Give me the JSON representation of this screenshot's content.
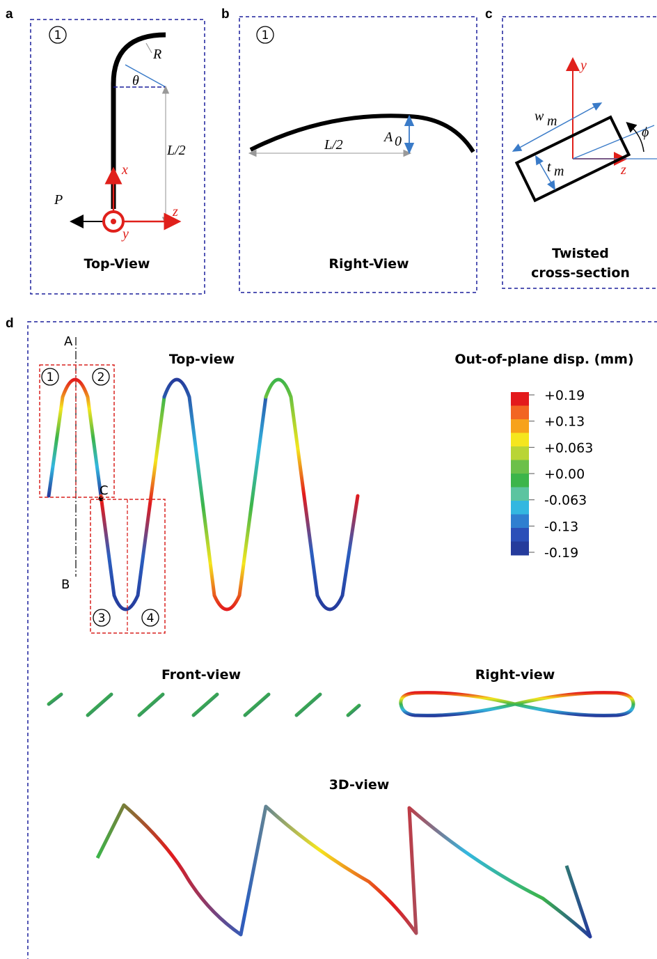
{
  "panel_labels": {
    "a": "a",
    "b": "b",
    "c": "c",
    "d": "d"
  },
  "panel_a": {
    "marker": "1",
    "R": "R",
    "theta": "θ",
    "L_half": "L/2",
    "x": "x",
    "y": "y",
    "z": "z",
    "P": "P",
    "caption": "Top-View"
  },
  "panel_b": {
    "marker": "1",
    "A": "A",
    "A_sub": "0",
    "L_half": "L/2",
    "caption": "Right-View"
  },
  "panel_c": {
    "y": "y",
    "z": "z",
    "w": "w",
    "w_sub": "m",
    "t": "t",
    "t_sub": "m",
    "phi": "ϕ",
    "caption_line1": "Twisted",
    "caption_line2": "cross-section"
  },
  "panel_d": {
    "top_view_title": "Top-view",
    "colorbar_title": "Out-of-plane disp. (mm)",
    "colorbar_ticks": [
      "+0.19",
      "+0.13",
      "+0.063",
      "+0.00",
      "-0.063",
      "-0.13",
      "-0.19"
    ],
    "colorbar_colors": [
      "#e31a1c",
      "#f26522",
      "#f7a21b",
      "#f5e61e",
      "#b9d535",
      "#6cc04a",
      "#3cb54a",
      "#5bc4a0",
      "#33b7e0",
      "#2f7fd0",
      "#2b4fb8",
      "#253b9c"
    ],
    "line_A": "A",
    "line_B": "B",
    "point_C": "C",
    "region_markers": [
      "1",
      "2",
      "3",
      "4"
    ],
    "front_view_title": "Front-view",
    "right_view_title": "Right-view",
    "view3d_title": "3D-view"
  },
  "colors": {
    "frame": "#1a1f9c",
    "axis_red": "#e0201b",
    "dim_blue": "#3a7bc8",
    "region_red": "#d9201e"
  }
}
